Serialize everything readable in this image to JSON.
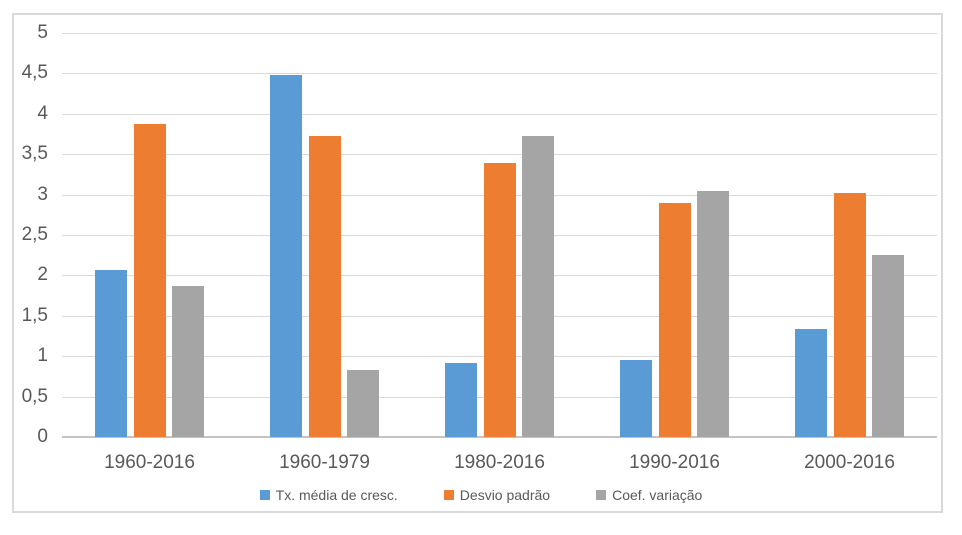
{
  "chart_data": {
    "type": "bar",
    "title": "",
    "xlabel": "",
    "ylabel": "",
    "categories": [
      "1960-2016",
      "1960-1979",
      "1980-2016",
      "1990-2016",
      "2000-2016"
    ],
    "series": [
      {
        "name": "Tx. média de cresc.",
        "color": "#5B9BD5",
        "values": [
          2.07,
          4.48,
          0.91,
          0.95,
          1.34
        ]
      },
      {
        "name": "Desvio padrão",
        "color": "#ED7D31",
        "values": [
          3.87,
          3.73,
          3.39,
          2.89,
          3.02
        ]
      },
      {
        "name": "Coef. variação",
        "color": "#A5A5A5",
        "values": [
          1.87,
          0.83,
          3.72,
          3.04,
          2.25
        ]
      }
    ],
    "ylim": [
      0,
      5
    ],
    "ytick_step": 0.5,
    "ytick_labels": [
      "0",
      "0,5",
      "1",
      "1,5",
      "2",
      "2,5",
      "3",
      "3,5",
      "4",
      "4,5",
      "5"
    ],
    "grid": true,
    "legend_position": "bottom",
    "colors": {
      "gridline": "#D9D9D9",
      "axis_line": "#C3C3C3",
      "frame_border": "#D9D9D9",
      "label_text": "#595959",
      "background": "#FFFFFF"
    }
  }
}
